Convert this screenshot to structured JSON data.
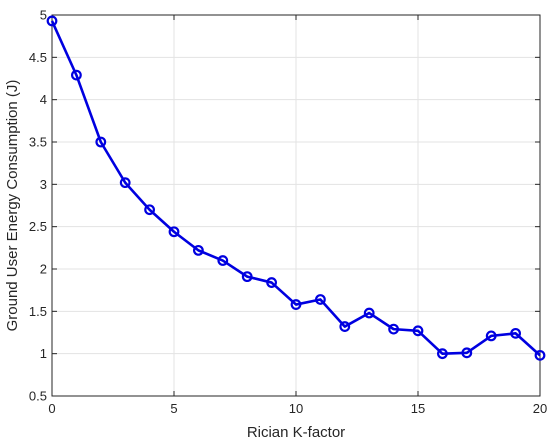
{
  "chart_data": {
    "type": "line",
    "xlabel": "Rician K-factor",
    "ylabel": "Ground User Energy Consumption (J)",
    "xlim": [
      0,
      20
    ],
    "ylim": [
      0.5,
      5
    ],
    "xticks": [
      0,
      5,
      10,
      15,
      20
    ],
    "yticks": [
      0.5,
      1,
      1.5,
      2,
      2.5,
      3,
      3.5,
      4,
      4.5,
      5
    ],
    "xtick_labels": [
      "0",
      "5",
      "10",
      "15",
      "20"
    ],
    "ytick_labels": [
      "0.5",
      "1",
      "1.5",
      "2",
      "2.5",
      "3",
      "3.5",
      "4",
      "4.5",
      "5"
    ],
    "grid": true,
    "series": [
      {
        "color": "#0000e0",
        "marker": "circle",
        "x": [
          0,
          1,
          2,
          3,
          4,
          5,
          6,
          7,
          8,
          9,
          10,
          11,
          12,
          13,
          14,
          15,
          16,
          17,
          18,
          19,
          20
        ],
        "values": [
          4.93,
          4.29,
          3.5,
          3.02,
          2.7,
          2.44,
          2.22,
          2.1,
          1.91,
          1.84,
          1.58,
          1.64,
          1.32,
          1.48,
          1.29,
          1.27,
          1.0,
          1.01,
          1.21,
          1.24,
          0.98
        ]
      }
    ]
  }
}
